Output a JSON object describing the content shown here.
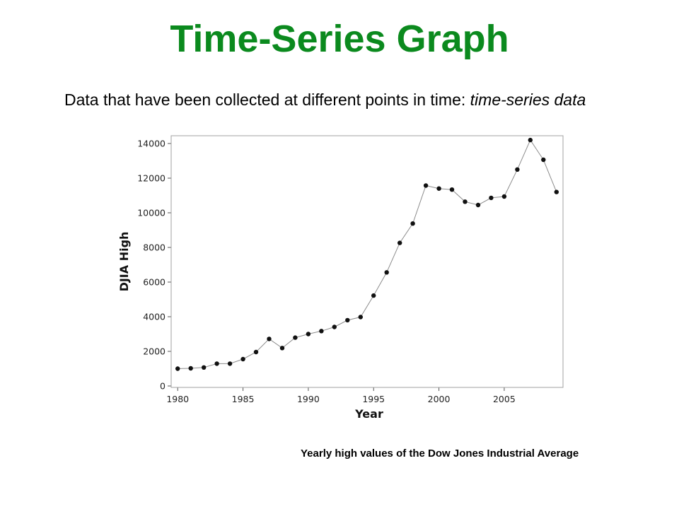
{
  "slide": {
    "title": "Time-Series Graph",
    "intro_text": "Data that have been collected at different points in time: ",
    "intro_term": "time-series data",
    "caption": "Yearly high values of the Dow Jones Industrial Average"
  },
  "colors": {
    "title": "#0b8a1e",
    "line": "#8c8c8c",
    "marker": "#111111",
    "frame": "#a0a0a0"
  },
  "chart_data": {
    "type": "line",
    "xlabel": "Year",
    "ylabel": "DJIA High",
    "xlim": [
      1979.5,
      2009.5
    ],
    "ylim": [
      0,
      14300
    ],
    "x_ticks": [
      1980,
      1985,
      1990,
      1995,
      2000,
      2005
    ],
    "y_ticks": [
      0,
      2000,
      4000,
      6000,
      8000,
      10000,
      12000,
      14000
    ],
    "grid": false,
    "markers": true,
    "x": [
      1980,
      1981,
      1982,
      1983,
      1984,
      1985,
      1986,
      1987,
      1988,
      1989,
      1990,
      1991,
      1992,
      1993,
      1994,
      1995,
      1996,
      1997,
      1998,
      1999,
      2000,
      2001,
      2002,
      2003,
      2004,
      2005,
      2006,
      2007,
      2008,
      2009
    ],
    "values": [
      1000,
      1020,
      1070,
      1290,
      1290,
      1550,
      1960,
      2720,
      2190,
      2790,
      3000,
      3170,
      3410,
      3800,
      3980,
      5220,
      6560,
      8260,
      9380,
      11570,
      11400,
      11340,
      10640,
      10450,
      10860,
      10940,
      12500,
      14200,
      13060,
      11200
    ]
  }
}
